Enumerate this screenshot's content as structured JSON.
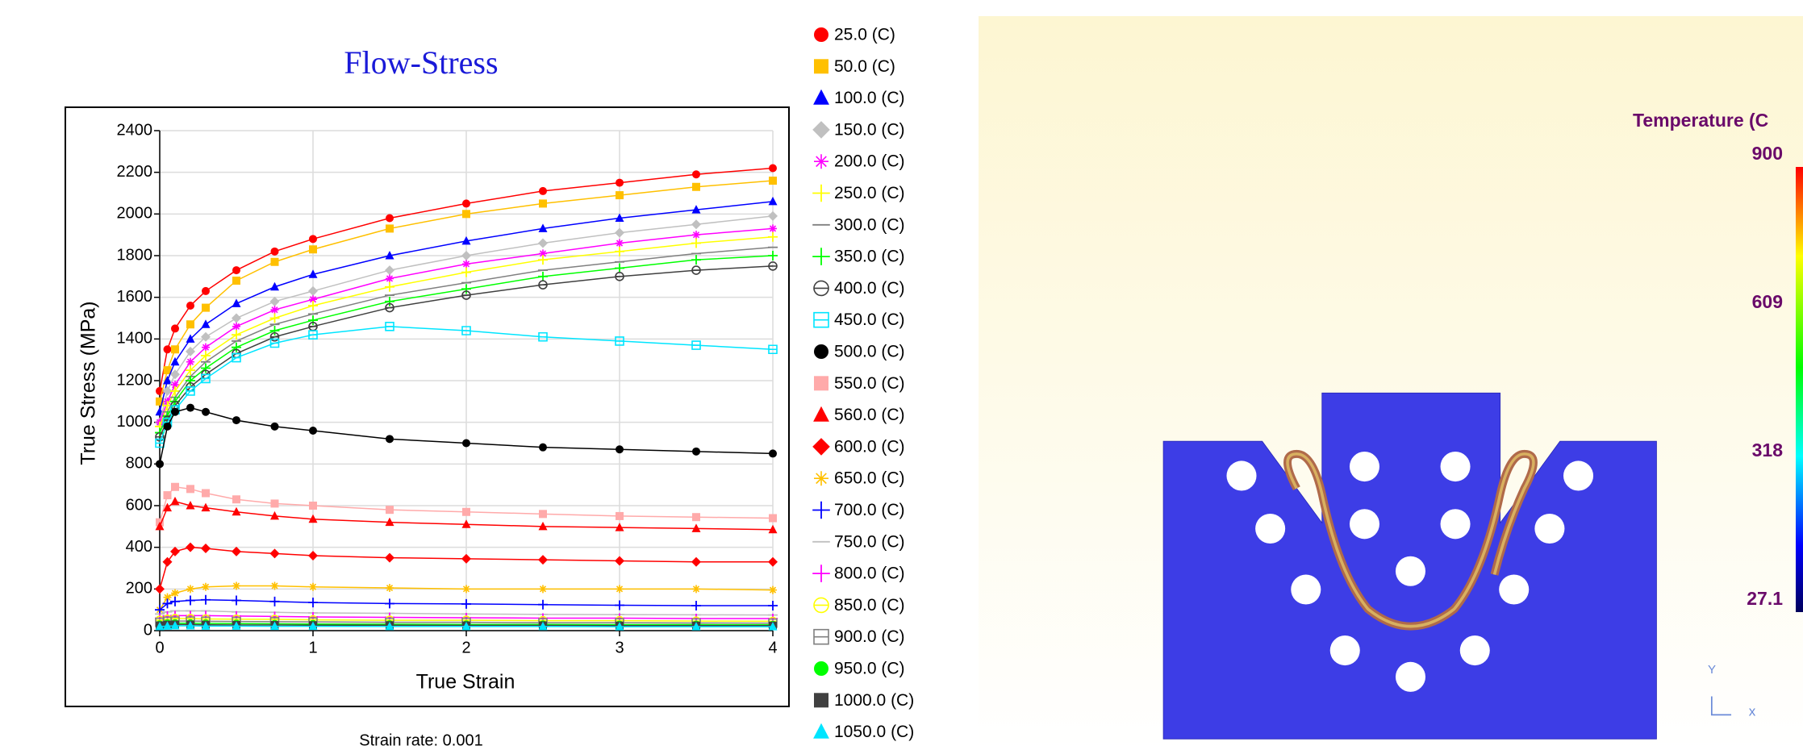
{
  "chart_data": {
    "type": "line",
    "title": "Flow-Stress",
    "x_label": "True Strain",
    "y_label": "True Stress (MPa)",
    "caption": "Strain rate: 0.001",
    "xlim": [
      0,
      4
    ],
    "ylim": [
      0,
      2400
    ],
    "xticks": [
      0,
      1,
      2,
      3,
      4
    ],
    "yticks": [
      0,
      200,
      400,
      600,
      800,
      1000,
      1200,
      1400,
      1600,
      1800,
      2000,
      2200,
      2400
    ],
    "grid": true,
    "legend": "right",
    "x": [
      0,
      0.05,
      0.1,
      0.2,
      0.3,
      0.5,
      0.75,
      1,
      1.5,
      2,
      2.5,
      3,
      3.5,
      4
    ],
    "series": [
      {
        "name": "25.0 (C)",
        "color": "#ff0000",
        "marker": "circle",
        "values": [
          1150,
          1350,
          1450,
          1560,
          1630,
          1730,
          1820,
          1880,
          1980,
          2050,
          2110,
          2150,
          2190,
          2220
        ]
      },
      {
        "name": "50.0 (C)",
        "color": "#ffc000",
        "marker": "square",
        "values": [
          1100,
          1250,
          1350,
          1470,
          1550,
          1680,
          1770,
          1830,
          1930,
          2000,
          2050,
          2090,
          2130,
          2160
        ]
      },
      {
        "name": "100.0 (C)",
        "color": "#0000ff",
        "marker": "triangle",
        "values": [
          1050,
          1200,
          1290,
          1400,
          1470,
          1570,
          1650,
          1710,
          1800,
          1870,
          1930,
          1980,
          2020,
          2060
        ]
      },
      {
        "name": "150.0 (C)",
        "color": "#c0c0c0",
        "marker": "diamond",
        "values": [
          1000,
          1150,
          1230,
          1340,
          1410,
          1500,
          1580,
          1630,
          1730,
          1800,
          1860,
          1910,
          1950,
          1990
        ]
      },
      {
        "name": "200.0 (C)",
        "color": "#ff00ff",
        "marker": "star",
        "values": [
          1000,
          1100,
          1180,
          1290,
          1360,
          1460,
          1540,
          1590,
          1690,
          1760,
          1810,
          1860,
          1900,
          1930
        ]
      },
      {
        "name": "250.0 (C)",
        "color": "#ffff00",
        "marker": "plus",
        "values": [
          980,
          1080,
          1150,
          1250,
          1320,
          1420,
          1500,
          1560,
          1650,
          1720,
          1780,
          1820,
          1860,
          1890
        ]
      },
      {
        "name": "300.0 (C)",
        "color": "#808080",
        "marker": "dash",
        "values": [
          950,
          1050,
          1120,
          1220,
          1290,
          1390,
          1470,
          1520,
          1610,
          1670,
          1730,
          1770,
          1810,
          1840
        ]
      },
      {
        "name": "350.0 (C)",
        "color": "#00ff00",
        "marker": "plus",
        "values": [
          950,
          1030,
          1100,
          1200,
          1260,
          1360,
          1440,
          1490,
          1580,
          1640,
          1700,
          1740,
          1780,
          1800
        ]
      },
      {
        "name": "400.0 (C)",
        "color": "#404040",
        "marker": "circle-open",
        "values": [
          930,
          1010,
          1080,
          1170,
          1230,
          1330,
          1410,
          1460,
          1550,
          1610,
          1660,
          1700,
          1730,
          1750
        ]
      },
      {
        "name": "450.0 (C)",
        "color": "#00e5ff",
        "marker": "square-open",
        "values": [
          900,
          1000,
          1060,
          1150,
          1210,
          1310,
          1380,
          1420,
          1460,
          1440,
          1410,
          1390,
          1370,
          1350
        ]
      },
      {
        "name": "500.0 (C)",
        "color": "#000000",
        "marker": "circle",
        "values": [
          800,
          980,
          1050,
          1070,
          1050,
          1010,
          980,
          960,
          920,
          900,
          880,
          870,
          860,
          850
        ]
      },
      {
        "name": "550.0 (C)",
        "color": "#ffaaaa",
        "marker": "square",
        "values": [
          520,
          650,
          690,
          680,
          660,
          630,
          610,
          600,
          580,
          570,
          560,
          550,
          545,
          540
        ]
      },
      {
        "name": "560.0 (C)",
        "color": "#ff0000",
        "marker": "triangle",
        "values": [
          500,
          590,
          620,
          600,
          590,
          570,
          550,
          535,
          520,
          510,
          500,
          495,
          490,
          485
        ]
      },
      {
        "name": "600.0 (C)",
        "color": "#ff0000",
        "marker": "diamond",
        "values": [
          200,
          330,
          380,
          400,
          395,
          380,
          370,
          360,
          350,
          345,
          340,
          335,
          330,
          330
        ]
      },
      {
        "name": "650.0 (C)",
        "color": "#ffc000",
        "marker": "star",
        "values": [
          100,
          160,
          180,
          200,
          210,
          215,
          215,
          210,
          205,
          200,
          200,
          200,
          200,
          195
        ]
      },
      {
        "name": "700.0 (C)",
        "color": "#0000ff",
        "marker": "plus",
        "values": [
          100,
          130,
          140,
          145,
          148,
          145,
          140,
          135,
          130,
          128,
          125,
          122,
          120,
          120
        ]
      },
      {
        "name": "750.0 (C)",
        "color": "#c0c0c0",
        "marker": "dash",
        "values": [
          80,
          90,
          95,
          95,
          95,
          90,
          88,
          85,
          83,
          80,
          78,
          77,
          76,
          75
        ]
      },
      {
        "name": "800.0 (C)",
        "color": "#ff00ff",
        "marker": "plus",
        "values": [
          60,
          70,
          72,
          72,
          72,
          70,
          68,
          66,
          64,
          62,
          60,
          60,
          58,
          58
        ]
      },
      {
        "name": "850.0 (C)",
        "color": "#ffff00",
        "marker": "circle-open",
        "values": [
          50,
          55,
          58,
          58,
          56,
          55,
          54,
          52,
          50,
          50,
          48,
          48,
          46,
          45
        ]
      },
      {
        "name": "900.0 (C)",
        "color": "#808080",
        "marker": "square-open",
        "values": [
          40,
          45,
          46,
          46,
          45,
          44,
          43,
          42,
          40,
          40,
          38,
          38,
          37,
          36
        ]
      },
      {
        "name": "950.0 (C)",
        "color": "#00ff00",
        "marker": "circle",
        "values": [
          30,
          35,
          36,
          36,
          35,
          34,
          33,
          32,
          31,
          30,
          30,
          29,
          29,
          28
        ]
      },
      {
        "name": "1000.0 (C)",
        "color": "#404040",
        "marker": "square",
        "values": [
          25,
          28,
          29,
          29,
          28,
          27,
          27,
          26,
          26,
          25,
          25,
          24,
          24,
          24
        ]
      },
      {
        "name": "1050.0 (C)",
        "color": "#00e5ff",
        "marker": "triangle",
        "values": [
          20,
          22,
          23,
          23,
          22,
          22,
          21,
          21,
          20,
          20,
          20,
          19,
          19,
          19
        ]
      }
    ]
  },
  "contour_panel": {
    "title": "Temperature (C",
    "colorbar": {
      "lim": [
        27.1,
        900
      ],
      "ticks": [
        900,
        609,
        318,
        27.1
      ]
    },
    "triad": {
      "y": "Y",
      "x": "x"
    }
  }
}
